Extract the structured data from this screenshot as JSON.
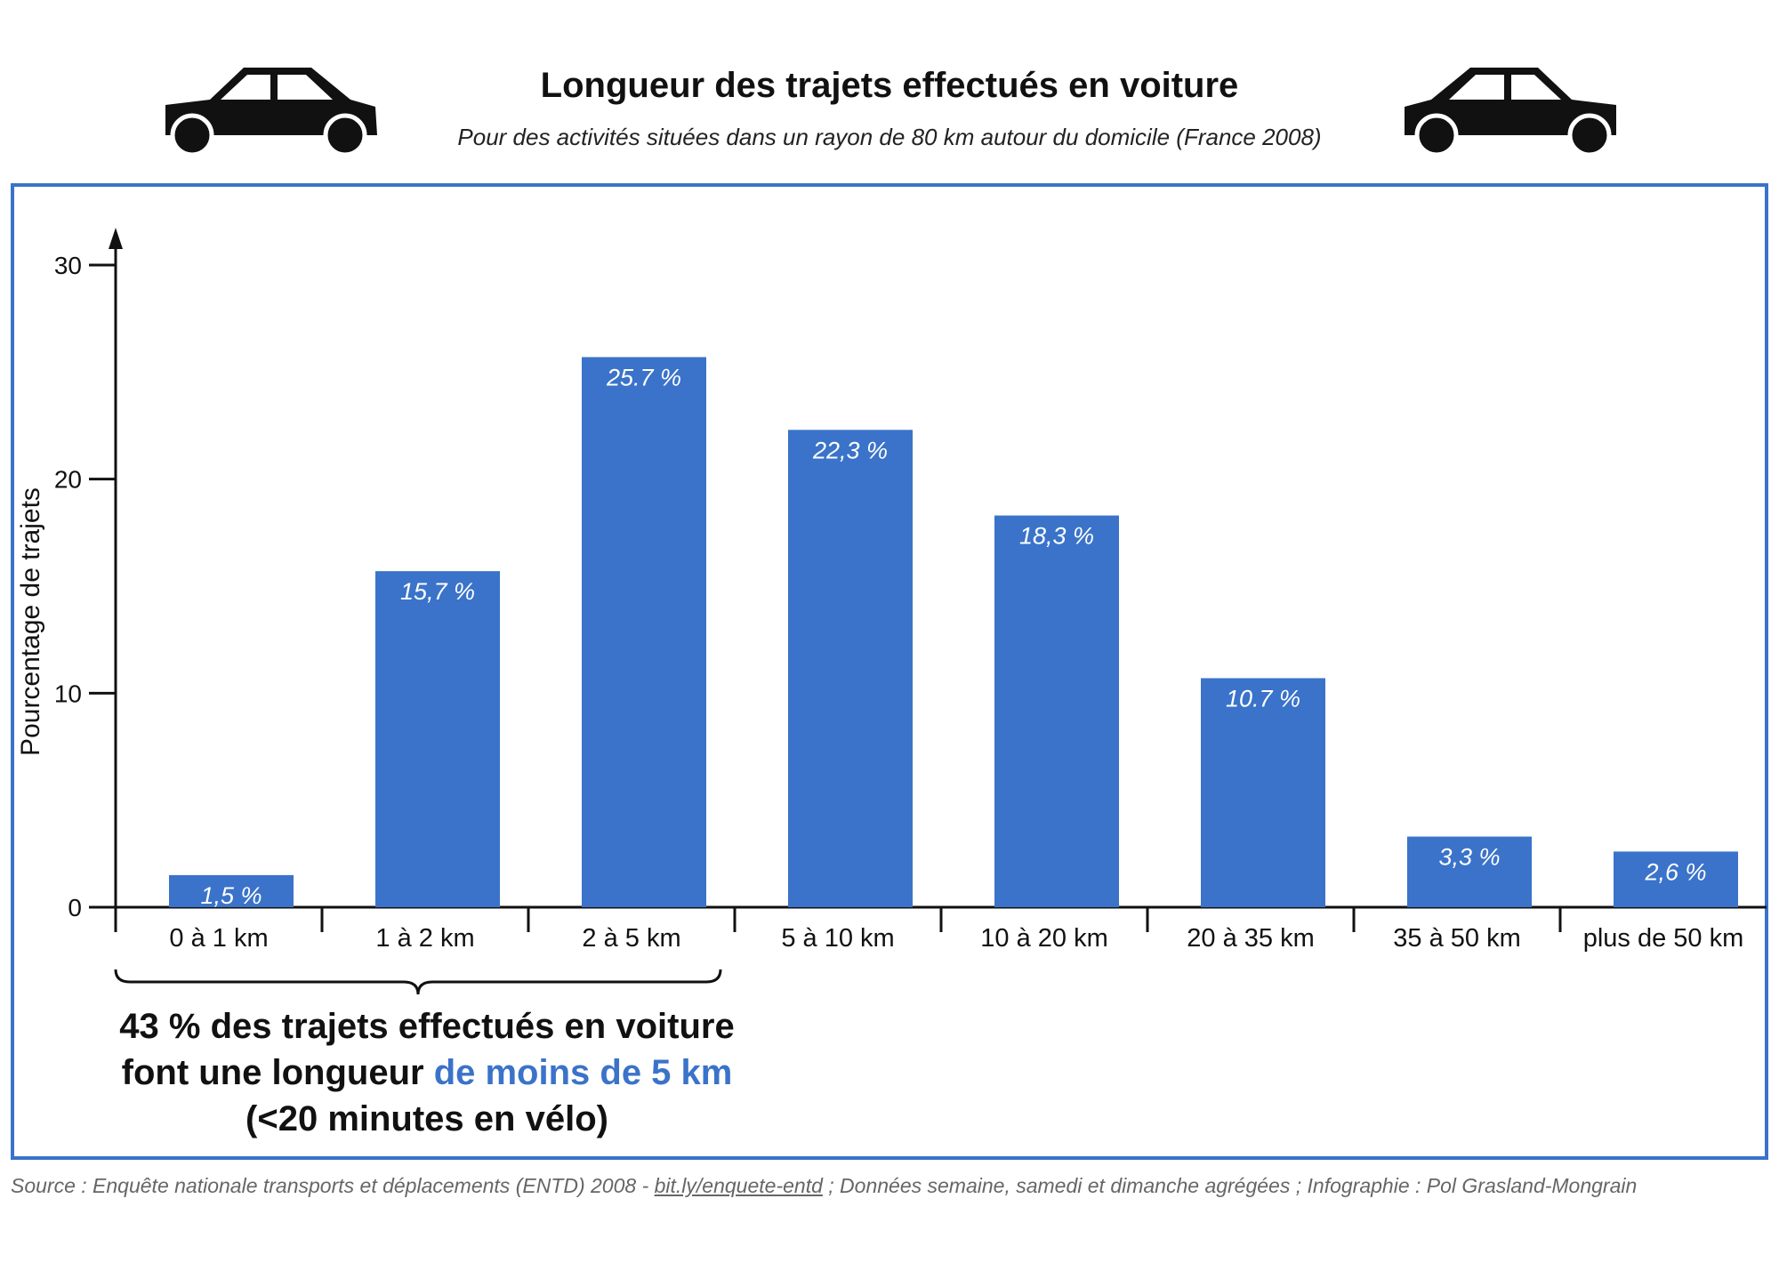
{
  "header": {
    "title": "Longueur des trajets effectués en voiture",
    "subtitle": "Pour des activités situées dans un rayon de 80 km autour du domicile (France 2008)"
  },
  "icons": [
    "car-icon",
    "car-icon"
  ],
  "colors": {
    "bar": "#3a73c9",
    "frame": "#3a73c9",
    "highlight": "#3a73c9"
  },
  "chart_data": {
    "type": "bar",
    "title": "Longueur des trajets effectués en voiture",
    "subtitle": "Pour des activités situées dans un rayon de 80 km autour du domicile (France 2008)",
    "xlabel": "",
    "ylabel": "Pourcentage de trajets",
    "ylim": [
      0,
      30
    ],
    "yticks": [
      "0",
      "10",
      "20",
      "30"
    ],
    "categories": [
      "0 à 1 km",
      "1 à 2 km",
      "2 à 5 km",
      "5 à 10 km",
      "10 à 20 km",
      "20 à 35 km",
      "35 à 50 km",
      "plus de 50 km"
    ],
    "values": [
      1.5,
      15.7,
      25.7,
      22.3,
      18.3,
      10.7,
      3.3,
      2.6
    ],
    "data_labels": [
      "1,5 %",
      "15,7 %",
      "25.7 %",
      "22,3 %",
      "18,3 %",
      "10.7 %",
      "3,3 %",
      "2,6 %"
    ],
    "grid": false,
    "legend": "none"
  },
  "annotation": {
    "line1": "43 % des trajets effectués en voiture",
    "line2_prefix": "font une longueur ",
    "line2_highlight": "de moins de 5 km",
    "line3": "(<20 minutes en vélo)"
  },
  "source": {
    "prefix": "Source :  Enquête nationale transports et déplacements (ENTD) 2008 - ",
    "link": "bit.ly/enquete-entd",
    "suffix": " ; Données semaine, samedi et dimanche agrégées ; Infographie : Pol Grasland-Mongrain"
  }
}
